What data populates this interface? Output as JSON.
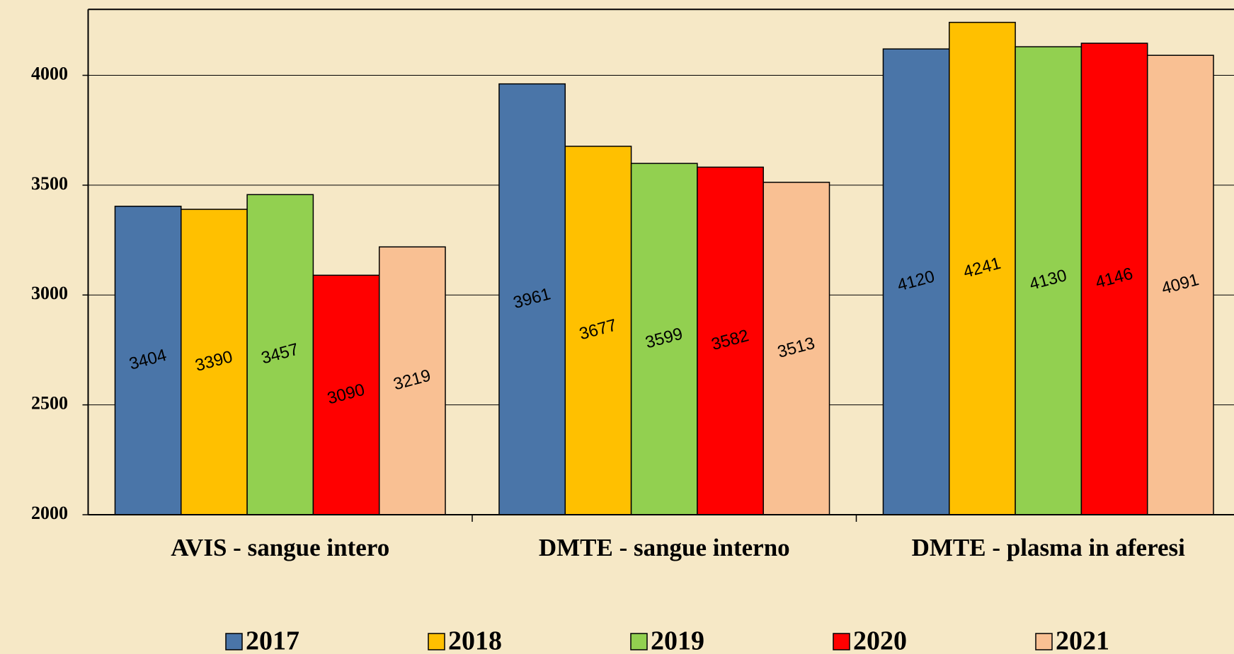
{
  "chart_data": {
    "type": "bar",
    "categories": [
      "AVIS - sangue intero",
      "DMTE - sangue interno",
      "DMTE - plasma in aferesi"
    ],
    "series": [
      {
        "name": "2017",
        "color": "#4a75a8",
        "values": [
          3404,
          3961,
          4120
        ]
      },
      {
        "name": "2018",
        "color": "#ffc000",
        "values": [
          3390,
          3677,
          4241
        ]
      },
      {
        "name": "2019",
        "color": "#92d050",
        "values": [
          3457,
          3599,
          4130
        ]
      },
      {
        "name": "2020",
        "color": "#ff0000",
        "values": [
          3090,
          3582,
          4146
        ]
      },
      {
        "name": "2021",
        "color": "#f9c093",
        "values": [
          3219,
          3513,
          4091
        ]
      }
    ],
    "ylim": [
      2000,
      4300
    ],
    "yticks": [
      2000,
      2500,
      3000,
      3500,
      4000
    ],
    "grid": true,
    "legend": "bottom"
  }
}
